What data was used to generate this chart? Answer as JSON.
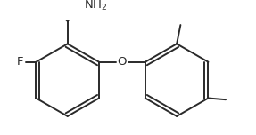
{
  "background_color": "#ffffff",
  "line_color": "#2a2a2a",
  "line_width": 1.4,
  "font_size": 9.5,
  "r1cx": 0.38,
  "r1cy": 0.3,
  "r2cx": 1.82,
  "r2cy": 0.3,
  "ring_r": 0.48
}
